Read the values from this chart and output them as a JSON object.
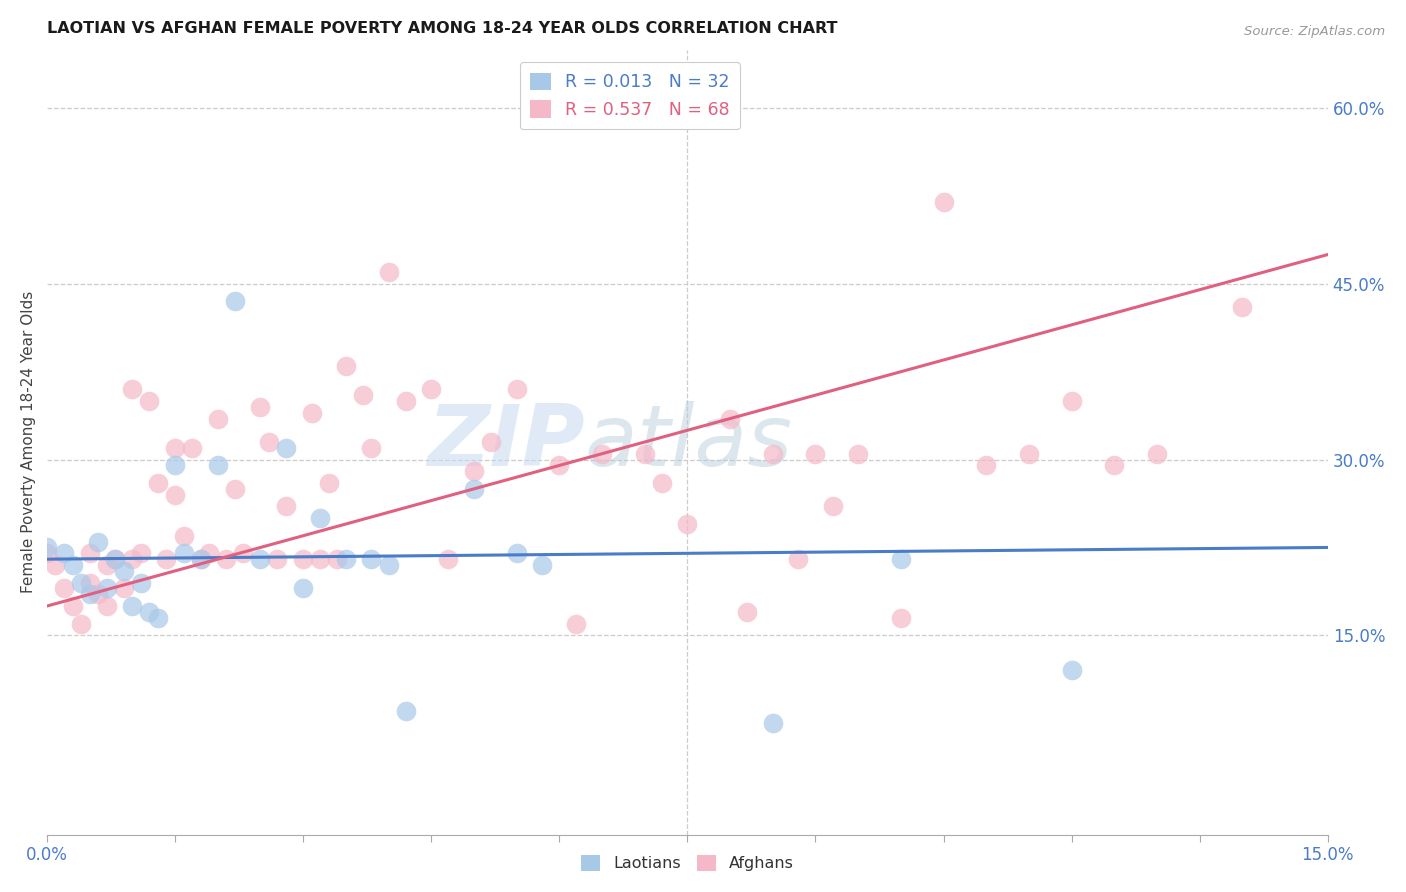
{
  "title": "LAOTIAN VS AFGHAN FEMALE POVERTY AMONG 18-24 YEAR OLDS CORRELATION CHART",
  "source": "Source: ZipAtlas.com",
  "ylabel": "Female Poverty Among 18-24 Year Olds",
  "xlim": [
    0.0,
    0.15
  ],
  "ylim": [
    -0.02,
    0.65
  ],
  "yticks": [
    0.15,
    0.3,
    0.45,
    0.6
  ],
  "background_color": "#ffffff",
  "watermark_zip": "ZIP",
  "watermark_atlas": "atlas",
  "legend_R1": "R = 0.013",
  "legend_N1": "N = 32",
  "legend_R2": "R = 0.537",
  "legend_N2": "N = 68",
  "blue_color": "#a8c8e8",
  "pink_color": "#f5b8c8",
  "blue_line_color": "#4a7cc7",
  "pink_line_color": "#e06080",
  "blue_line_y0": 0.215,
  "blue_line_y1": 0.225,
  "pink_line_y0": 0.175,
  "pink_line_y1": 0.475,
  "laotian_x": [
    0.0,
    0.002,
    0.003,
    0.004,
    0.005,
    0.006,
    0.007,
    0.008,
    0.009,
    0.01,
    0.011,
    0.012,
    0.013,
    0.015,
    0.016,
    0.018,
    0.02,
    0.022,
    0.025,
    0.028,
    0.03,
    0.032,
    0.035,
    0.038,
    0.04,
    0.042,
    0.05,
    0.055,
    0.058,
    0.085,
    0.1,
    0.12
  ],
  "laotian_y": [
    0.225,
    0.22,
    0.21,
    0.195,
    0.185,
    0.23,
    0.19,
    0.215,
    0.205,
    0.175,
    0.195,
    0.17,
    0.165,
    0.295,
    0.22,
    0.215,
    0.295,
    0.435,
    0.215,
    0.31,
    0.19,
    0.25,
    0.215,
    0.215,
    0.21,
    0.085,
    0.275,
    0.22,
    0.21,
    0.075,
    0.215,
    0.12
  ],
  "afghan_x": [
    0.0,
    0.001,
    0.002,
    0.003,
    0.004,
    0.005,
    0.005,
    0.006,
    0.007,
    0.007,
    0.008,
    0.009,
    0.01,
    0.01,
    0.011,
    0.012,
    0.013,
    0.014,
    0.015,
    0.015,
    0.016,
    0.017,
    0.018,
    0.019,
    0.02,
    0.021,
    0.022,
    0.023,
    0.025,
    0.026,
    0.027,
    0.028,
    0.03,
    0.031,
    0.032,
    0.033,
    0.034,
    0.035,
    0.037,
    0.038,
    0.04,
    0.042,
    0.045,
    0.047,
    0.05,
    0.052,
    0.055,
    0.06,
    0.062,
    0.065,
    0.07,
    0.072,
    0.075,
    0.08,
    0.082,
    0.085,
    0.088,
    0.09,
    0.092,
    0.095,
    0.1,
    0.105,
    0.11,
    0.115,
    0.12,
    0.125,
    0.13,
    0.14
  ],
  "afghan_y": [
    0.22,
    0.21,
    0.19,
    0.175,
    0.16,
    0.195,
    0.22,
    0.185,
    0.21,
    0.175,
    0.215,
    0.19,
    0.36,
    0.215,
    0.22,
    0.35,
    0.28,
    0.215,
    0.31,
    0.27,
    0.235,
    0.31,
    0.215,
    0.22,
    0.335,
    0.215,
    0.275,
    0.22,
    0.345,
    0.315,
    0.215,
    0.26,
    0.215,
    0.34,
    0.215,
    0.28,
    0.215,
    0.38,
    0.355,
    0.31,
    0.46,
    0.35,
    0.36,
    0.215,
    0.29,
    0.315,
    0.36,
    0.295,
    0.16,
    0.305,
    0.305,
    0.28,
    0.245,
    0.335,
    0.17,
    0.305,
    0.215,
    0.305,
    0.26,
    0.305,
    0.165,
    0.52,
    0.295,
    0.305,
    0.35,
    0.295,
    0.305,
    0.43
  ]
}
